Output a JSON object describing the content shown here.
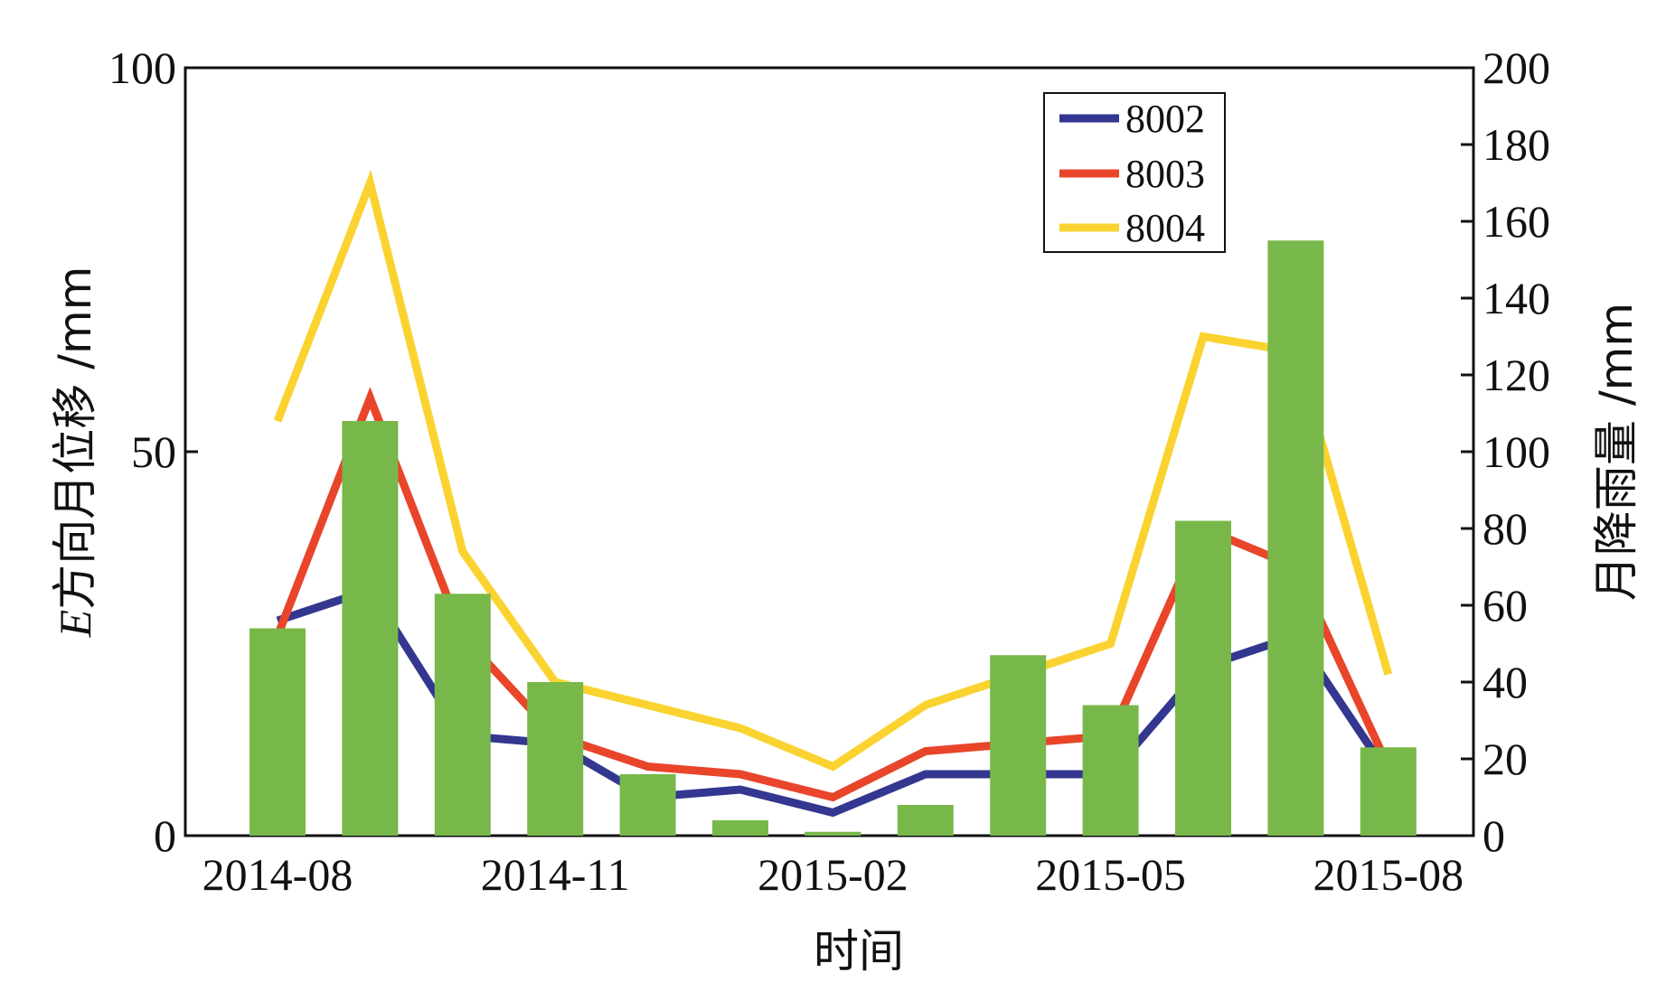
{
  "chart_data": {
    "type": "bar+line",
    "x_categories": [
      "2014-08",
      "2014-09",
      "2014-10",
      "2014-11",
      "2014-12",
      "2015-01",
      "2015-02",
      "2015-03",
      "2015-04",
      "2015-05",
      "2015-06",
      "2015-07",
      "2015-08"
    ],
    "x_tick_labels": [
      "2014-08",
      "2014-11",
      "2015-02",
      "2015-05",
      "2015-08"
    ],
    "xlabel": "时间",
    "ylabel_left": {
      "prefix": "E",
      "text": "方向月位移 /mm"
    },
    "ylabel_right": "月降雨量 /mm",
    "ylim_left": [
      0,
      100
    ],
    "ylim_right": [
      0,
      200
    ],
    "yticks_left": [
      "0",
      "50",
      "100"
    ],
    "yticks_right": [
      "0",
      "20",
      "40",
      "60",
      "80",
      "100",
      "120",
      "140",
      "160",
      "180",
      "200"
    ],
    "rainfall": {
      "name": "月降雨量",
      "color": "#78b84a",
      "values": [
        54,
        108,
        63,
        40,
        16,
        4,
        1,
        8,
        47,
        34,
        82,
        155,
        23
      ]
    },
    "series": [
      {
        "name": "8002",
        "color": "#33378f",
        "values": [
          28,
          32,
          13,
          12,
          5,
          6,
          3,
          8,
          8,
          8,
          22,
          26,
          8
        ]
      },
      {
        "name": "8003",
        "color": "#e8452a",
        "values": [
          26,
          57,
          26,
          13,
          9,
          8,
          5,
          11,
          12,
          13,
          40,
          35,
          9
        ]
      },
      {
        "name": "8004",
        "color": "#fad331",
        "values": [
          54,
          85,
          37,
          20,
          17,
          14,
          9,
          17,
          21,
          25,
          65,
          63,
          21
        ]
      }
    ]
  }
}
